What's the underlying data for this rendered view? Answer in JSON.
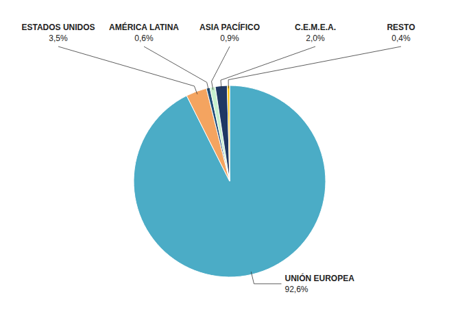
{
  "chart_data": {
    "type": "pie",
    "categories": [
      "UNIÓN EUROPEA",
      "ESTADOS UNIDOS",
      "AMÉRICA LATINA",
      "ASIA PACÍFICO",
      "C.E.M.E.A.",
      "RESTO"
    ],
    "values": [
      92.6,
      3.5,
      0.6,
      0.9,
      2.0,
      0.4
    ],
    "value_labels": [
      "92,6%",
      "3,5%",
      "0,6%",
      "0,9%",
      "2,0%",
      "0,4%"
    ],
    "colors": [
      "#4bacc6",
      "#f4a460",
      "#1f4e79",
      "#c6efce",
      "#1f3864",
      "#ffc000"
    ],
    "data_labels": true
  }
}
